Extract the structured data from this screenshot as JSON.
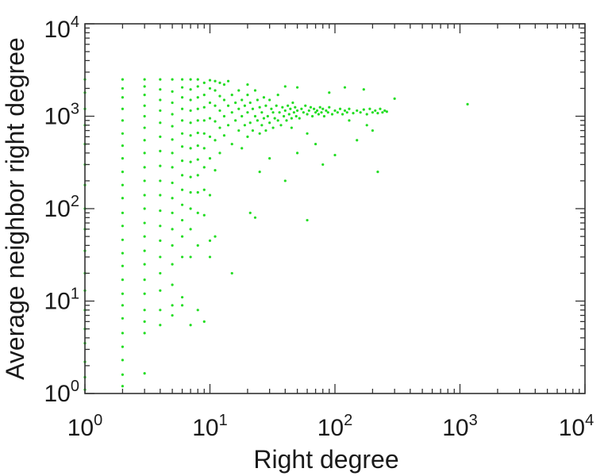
{
  "chart_data": {
    "type": "scatter",
    "title": "",
    "xlabel": "Right degree",
    "ylabel": "Average neighbor right degree",
    "x_scale": "log",
    "y_scale": "log",
    "xlim": [
      1,
      10000
    ],
    "ylim": [
      1,
      10000
    ],
    "grid": false,
    "marker_color": "#22dd22",
    "x_ticks": [
      {
        "base": "10",
        "exp": "0"
      },
      {
        "base": "10",
        "exp": "1"
      },
      {
        "base": "10",
        "exp": "2"
      },
      {
        "base": "10",
        "exp": "3"
      },
      {
        "base": "10",
        "exp": "4"
      }
    ],
    "y_ticks": [
      {
        "base": "10",
        "exp": "0"
      },
      {
        "base": "10",
        "exp": "1"
      },
      {
        "base": "10",
        "exp": "2"
      },
      {
        "base": "10",
        "exp": "3"
      },
      {
        "base": "10",
        "exp": "4"
      }
    ],
    "points": [
      [
        1,
        1.1
      ],
      [
        1,
        1.5
      ],
      [
        1,
        2.2
      ],
      [
        1,
        3.5
      ],
      [
        1,
        5
      ],
      [
        1,
        8
      ],
      [
        1,
        13
      ],
      [
        1,
        20
      ],
      [
        1,
        35
      ],
      [
        1,
        60
      ],
      [
        1,
        100
      ],
      [
        1,
        180
      ],
      [
        1,
        300
      ],
      [
        1,
        500
      ],
      [
        1,
        800
      ],
      [
        1,
        1200
      ],
      [
        1,
        1800
      ],
      [
        1,
        2500
      ],
      [
        2,
        1.2
      ],
      [
        2,
        1.6
      ],
      [
        2,
        2.3
      ],
      [
        2,
        3.2
      ],
      [
        2,
        4.5
      ],
      [
        2,
        6.5
      ],
      [
        2,
        9
      ],
      [
        2,
        12
      ],
      [
        2,
        17
      ],
      [
        2,
        24
      ],
      [
        2,
        33
      ],
      [
        2,
        46
      ],
      [
        2,
        65
      ],
      [
        2,
        90
      ],
      [
        2,
        130
      ],
      [
        2,
        180
      ],
      [
        2,
        250
      ],
      [
        2,
        350
      ],
      [
        2,
        480
      ],
      [
        2,
        650
      ],
      [
        2,
        900
      ],
      [
        2,
        1200
      ],
      [
        2,
        1600
      ],
      [
        2,
        2000
      ],
      [
        2,
        2500
      ],
      [
        3,
        1.65
      ],
      [
        3,
        4.5
      ],
      [
        3,
        6
      ],
      [
        3,
        8
      ],
      [
        3,
        12
      ],
      [
        3,
        17
      ],
      [
        3,
        25
      ],
      [
        3,
        35
      ],
      [
        3,
        50
      ],
      [
        3,
        70
      ],
      [
        3,
        100
      ],
      [
        3,
        140
      ],
      [
        3,
        200
      ],
      [
        3,
        280
      ],
      [
        3,
        400
      ],
      [
        3,
        550
      ],
      [
        3,
        750
      ],
      [
        3,
        1000
      ],
      [
        3,
        1300
      ],
      [
        3,
        1700
      ],
      [
        3,
        2100
      ],
      [
        3,
        2500
      ],
      [
        4,
        5.5
      ],
      [
        4,
        8
      ],
      [
        4,
        13
      ],
      [
        4,
        20
      ],
      [
        4,
        30
      ],
      [
        4,
        45
      ],
      [
        4,
        65
      ],
      [
        4,
        95
      ],
      [
        4,
        140
      ],
      [
        4,
        200
      ],
      [
        4,
        290
      ],
      [
        4,
        420
      ],
      [
        4,
        600
      ],
      [
        4,
        850
      ],
      [
        4,
        1150
      ],
      [
        4,
        1500
      ],
      [
        4,
        1950
      ],
      [
        4,
        2500
      ],
      [
        5,
        7
      ],
      [
        5,
        9
      ],
      [
        5,
        15
      ],
      [
        5,
        25
      ],
      [
        5,
        40
      ],
      [
        5,
        60
      ],
      [
        5,
        90
      ],
      [
        5,
        130
      ],
      [
        5,
        190
      ],
      [
        5,
        280
      ],
      [
        5,
        400
      ],
      [
        5,
        560
      ],
      [
        5,
        780
      ],
      [
        5,
        1050
      ],
      [
        5,
        1400
      ],
      [
        5,
        1850
      ],
      [
        5,
        2500
      ],
      [
        6,
        9
      ],
      [
        6,
        11
      ],
      [
        6,
        30
      ],
      [
        6,
        50
      ],
      [
        6,
        75
      ],
      [
        6,
        110
      ],
      [
        6,
        160
      ],
      [
        6,
        230
      ],
      [
        6,
        330
      ],
      [
        6,
        470
      ],
      [
        6,
        650
      ],
      [
        6,
        900
      ],
      [
        6,
        1200
      ],
      [
        6,
        1600
      ],
      [
        6,
        2050
      ],
      [
        6,
        2500
      ],
      [
        7,
        5.5
      ],
      [
        7,
        30
      ],
      [
        7,
        60
      ],
      [
        7,
        100
      ],
      [
        7,
        150
      ],
      [
        7,
        220
      ],
      [
        7,
        320
      ],
      [
        7,
        450
      ],
      [
        7,
        620
      ],
      [
        7,
        850
      ],
      [
        7,
        1150
      ],
      [
        7,
        1500
      ],
      [
        7,
        1950
      ],
      [
        7,
        2500
      ],
      [
        8,
        8
      ],
      [
        8,
        40
      ],
      [
        8,
        90
      ],
      [
        8,
        150
      ],
      [
        8,
        230
      ],
      [
        8,
        340
      ],
      [
        8,
        480
      ],
      [
        8,
        660
      ],
      [
        8,
        900
      ],
      [
        8,
        1200
      ],
      [
        8,
        1600
      ],
      [
        8,
        2100
      ],
      [
        8,
        2500
      ],
      [
        9,
        6
      ],
      [
        9,
        85
      ],
      [
        9,
        160
      ],
      [
        9,
        280
      ],
      [
        9,
        450
      ],
      [
        9,
        650
      ],
      [
        9,
        900
      ],
      [
        9,
        1250
      ],
      [
        9,
        1700
      ],
      [
        9,
        2300
      ],
      [
        10,
        30
      ],
      [
        10,
        45
      ],
      [
        10,
        140
      ],
      [
        10,
        350
      ],
      [
        10,
        600
      ],
      [
        10,
        950
      ],
      [
        10,
        1400
      ],
      [
        10,
        2000
      ],
      [
        10,
        2450
      ],
      [
        11,
        50
      ],
      [
        11,
        260
      ],
      [
        11,
        550
      ],
      [
        11,
        880
      ],
      [
        11,
        1300
      ],
      [
        11,
        1900
      ],
      [
        11,
        2400
      ],
      [
        12,
        400
      ],
      [
        12,
        750
      ],
      [
        12,
        1150
      ],
      [
        12,
        1650
      ],
      [
        12,
        2300
      ],
      [
        13,
        620
      ],
      [
        13,
        1000
      ],
      [
        13,
        1500
      ],
      [
        13,
        2200
      ],
      [
        14,
        800
      ],
      [
        14,
        1300
      ],
      [
        14,
        2400
      ],
      [
        15,
        20
      ],
      [
        15,
        500
      ],
      [
        15,
        1100
      ],
      [
        15,
        1700
      ],
      [
        16,
        900
      ],
      [
        16,
        1400
      ],
      [
        17,
        700
      ],
      [
        17,
        1200
      ],
      [
        17,
        1900
      ],
      [
        18,
        450
      ],
      [
        18,
        1000
      ],
      [
        18,
        1500
      ],
      [
        19,
        800
      ],
      [
        19,
        1300
      ],
      [
        20,
        600
      ],
      [
        20,
        1100
      ],
      [
        20,
        1700
      ],
      [
        20,
        2200
      ],
      [
        21,
        90
      ],
      [
        21,
        850
      ],
      [
        21,
        1400
      ],
      [
        22,
        700
      ],
      [
        22,
        1200
      ],
      [
        23,
        80
      ],
      [
        23,
        1000
      ],
      [
        23,
        1900
      ],
      [
        24,
        900
      ],
      [
        24,
        1500
      ],
      [
        25,
        650
      ],
      [
        25,
        1250
      ],
      [
        26,
        800
      ],
      [
        26,
        1100
      ],
      [
        27,
        950
      ],
      [
        27,
        1600
      ],
      [
        28,
        700
      ],
      [
        28,
        1300
      ],
      [
        29,
        1000
      ],
      [
        30,
        850
      ],
      [
        30,
        1500
      ],
      [
        31,
        1200
      ],
      [
        32,
        750
      ],
      [
        32,
        1100
      ],
      [
        33,
        950
      ],
      [
        34,
        1300
      ],
      [
        35,
        900
      ],
      [
        35,
        1700
      ],
      [
        36,
        1100
      ],
      [
        37,
        800
      ],
      [
        38,
        1250
      ],
      [
        39,
        1000
      ],
      [
        40,
        1150
      ],
      [
        40,
        2100
      ],
      [
        41,
        900
      ],
      [
        42,
        1300
      ],
      [
        43,
        1050
      ],
      [
        44,
        1200
      ],
      [
        45,
        950
      ],
      [
        46,
        1400
      ],
      [
        47,
        1100
      ],
      [
        48,
        1250
      ],
      [
        49,
        1000
      ],
      [
        50,
        1150
      ],
      [
        50,
        2050
      ],
      [
        52,
        950
      ],
      [
        54,
        1200
      ],
      [
        56,
        1100
      ],
      [
        58,
        1300
      ],
      [
        60,
        75
      ],
      [
        60,
        1050
      ],
      [
        62,
        1150
      ],
      [
        64,
        1250
      ],
      [
        66,
        1000
      ],
      [
        68,
        1200
      ],
      [
        70,
        1100
      ],
      [
        72,
        1150
      ],
      [
        74,
        1050
      ],
      [
        76,
        1250
      ],
      [
        78,
        1100
      ],
      [
        80,
        1200
      ],
      [
        82,
        1000
      ],
      [
        85,
        1150
      ],
      [
        88,
        1100
      ],
      [
        90,
        1250
      ],
      [
        95,
        1050
      ],
      [
        100,
        1150
      ],
      [
        105,
        1100
      ],
      [
        110,
        1200
      ],
      [
        115,
        1050
      ],
      [
        120,
        1150
      ],
      [
        125,
        1100
      ],
      [
        130,
        1200
      ],
      [
        140,
        1080
      ],
      [
        150,
        1150
      ],
      [
        160,
        1100
      ],
      [
        170,
        1180
      ],
      [
        180,
        1050
      ],
      [
        190,
        1200
      ],
      [
        200,
        1100
      ],
      [
        210,
        1150
      ],
      [
        220,
        1080
      ],
      [
        230,
        1200
      ],
      [
        240,
        1100
      ],
      [
        250,
        1150
      ],
      [
        260,
        1120
      ],
      [
        100,
        380
      ],
      [
        150,
        550
      ],
      [
        180,
        800
      ],
      [
        200,
        700
      ],
      [
        220,
        250
      ],
      [
        80,
        300
      ],
      [
        70,
        500
      ],
      [
        60,
        650
      ],
      [
        50,
        400
      ],
      [
        40,
        200
      ],
      [
        30,
        350
      ],
      [
        25,
        250
      ],
      [
        45,
        750
      ],
      [
        130,
        900
      ],
      [
        120,
        2050
      ],
      [
        170,
        1950
      ],
      [
        90,
        1800
      ],
      [
        300,
        1550
      ],
      [
        1150,
        1350
      ]
    ]
  }
}
